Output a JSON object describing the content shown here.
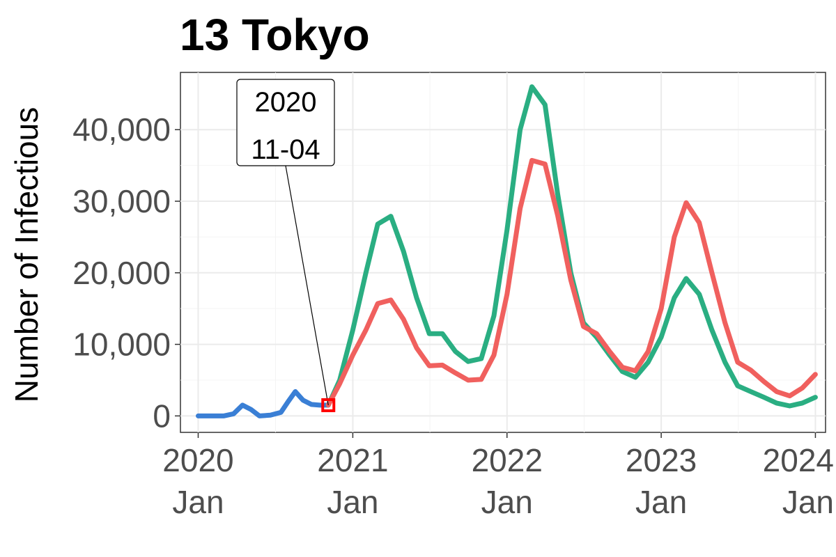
{
  "chart_data": {
    "type": "line",
    "title": "13 Tokyo",
    "ylabel": "Number of Infectious",
    "xlabel": "",
    "xlim": [
      "2019-11-20",
      "2024-01-25"
    ],
    "ylim": [
      -2300,
      48000
    ],
    "y_ticks": [
      {
        "value": 0,
        "label": "0"
      },
      {
        "value": 10000,
        "label": "10,000"
      },
      {
        "value": 20000,
        "label": "20,000"
      },
      {
        "value": 30000,
        "label": "30,000"
      },
      {
        "value": 40000,
        "label": "40,000"
      }
    ],
    "x_ticks": [
      {
        "date": "2020-01-01",
        "year": "2020",
        "month": "Jan"
      },
      {
        "date": "2021-01-01",
        "year": "2021",
        "month": "Jan"
      },
      {
        "date": "2022-01-01",
        "year": "2022",
        "month": "Jan"
      },
      {
        "date": "2023-01-01",
        "year": "2023",
        "month": "Jan"
      },
      {
        "date": "2024-01-01",
        "year": "2024",
        "month": "Jan"
      }
    ],
    "grid": true,
    "legend": "none",
    "annotation": {
      "date": "2020-11-04",
      "value": 1500,
      "line1": "2020",
      "line2": "11-04",
      "marker_color": "#ff0000"
    },
    "series": [
      {
        "color": "#3a7fd5",
        "points": [
          [
            "2020-01-01",
            0
          ],
          [
            "2020-02-01",
            0
          ],
          [
            "2020-03-01",
            0
          ],
          [
            "2020-03-25",
            300
          ],
          [
            "2020-04-15",
            1500
          ],
          [
            "2020-05-05",
            900
          ],
          [
            "2020-05-25",
            0
          ],
          [
            "2020-06-20",
            100
          ],
          [
            "2020-07-15",
            500
          ],
          [
            "2020-08-01",
            2000
          ],
          [
            "2020-08-18",
            3400
          ],
          [
            "2020-09-05",
            2200
          ],
          [
            "2020-09-25",
            1600
          ],
          [
            "2020-10-15",
            1500
          ],
          [
            "2020-11-04",
            1500
          ]
        ]
      },
      {
        "color": "#2aae82",
        "points": [
          [
            "2020-11-04",
            1500
          ],
          [
            "2020-12-01",
            5000
          ],
          [
            "2021-01-01",
            12000
          ],
          [
            "2021-02-01",
            20000
          ],
          [
            "2021-03-01",
            26800
          ],
          [
            "2021-04-01",
            27900
          ],
          [
            "2021-05-01",
            23000
          ],
          [
            "2021-06-01",
            16500
          ],
          [
            "2021-07-01",
            11500
          ],
          [
            "2021-08-01",
            11500
          ],
          [
            "2021-09-01",
            9000
          ],
          [
            "2021-10-01",
            7600
          ],
          [
            "2021-11-01",
            8000
          ],
          [
            "2021-12-01",
            14000
          ],
          [
            "2022-01-01",
            26000
          ],
          [
            "2022-02-01",
            40000
          ],
          [
            "2022-03-01",
            46000
          ],
          [
            "2022-04-01",
            43500
          ],
          [
            "2022-05-01",
            31000
          ],
          [
            "2022-06-01",
            20000
          ],
          [
            "2022-07-01",
            13000
          ],
          [
            "2022-08-01",
            11000
          ],
          [
            "2022-09-01",
            8500
          ],
          [
            "2022-10-01",
            6200
          ],
          [
            "2022-11-01",
            5400
          ],
          [
            "2022-12-01",
            7500
          ],
          [
            "2023-01-01",
            11000
          ],
          [
            "2023-02-01",
            16500
          ],
          [
            "2023-03-01",
            19200
          ],
          [
            "2023-04-01",
            17000
          ],
          [
            "2023-05-01",
            12000
          ],
          [
            "2023-06-01",
            7500
          ],
          [
            "2023-07-01",
            4200
          ],
          [
            "2023-08-01",
            3400
          ],
          [
            "2023-09-01",
            2600
          ],
          [
            "2023-10-01",
            1800
          ],
          [
            "2023-11-01",
            1400
          ],
          [
            "2023-12-01",
            1800
          ],
          [
            "2024-01-01",
            2600
          ]
        ]
      },
      {
        "color": "#f0605e",
        "points": [
          [
            "2020-11-04",
            1500
          ],
          [
            "2020-12-01",
            4500
          ],
          [
            "2021-01-01",
            8500
          ],
          [
            "2021-02-01",
            12000
          ],
          [
            "2021-03-01",
            15700
          ],
          [
            "2021-04-01",
            16200
          ],
          [
            "2021-05-01",
            13500
          ],
          [
            "2021-06-01",
            9500
          ],
          [
            "2021-07-01",
            7000
          ],
          [
            "2021-08-01",
            7100
          ],
          [
            "2021-09-01",
            6000
          ],
          [
            "2021-10-01",
            5000
          ],
          [
            "2021-11-01",
            5100
          ],
          [
            "2021-12-01",
            8500
          ],
          [
            "2022-01-01",
            17000
          ],
          [
            "2022-02-01",
            29000
          ],
          [
            "2022-03-01",
            35700
          ],
          [
            "2022-04-01",
            35200
          ],
          [
            "2022-05-01",
            28000
          ],
          [
            "2022-06-01",
            19000
          ],
          [
            "2022-07-01",
            12500
          ],
          [
            "2022-08-01",
            11500
          ],
          [
            "2022-09-01",
            9000
          ],
          [
            "2022-10-01",
            6800
          ],
          [
            "2022-11-01",
            6300
          ],
          [
            "2022-12-01",
            9000
          ],
          [
            "2023-01-01",
            15000
          ],
          [
            "2023-02-01",
            25000
          ],
          [
            "2023-03-01",
            29800
          ],
          [
            "2023-04-01",
            27000
          ],
          [
            "2023-05-01",
            20000
          ],
          [
            "2023-06-01",
            13000
          ],
          [
            "2023-07-01",
            7500
          ],
          [
            "2023-08-01",
            6400
          ],
          [
            "2023-09-01",
            4800
          ],
          [
            "2023-10-01",
            3400
          ],
          [
            "2023-11-01",
            2800
          ],
          [
            "2023-12-01",
            3900
          ],
          [
            "2024-01-01",
            5800
          ]
        ]
      }
    ]
  }
}
